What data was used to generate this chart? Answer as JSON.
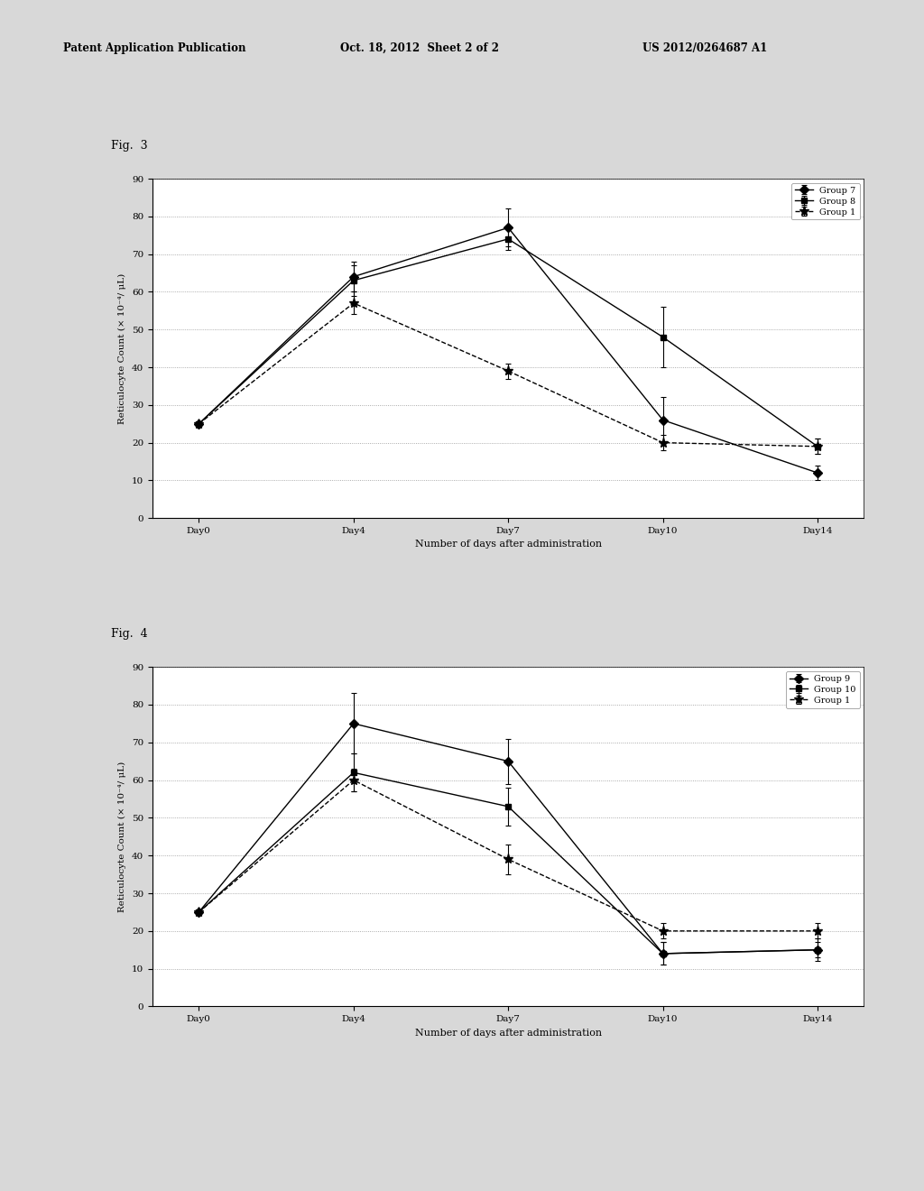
{
  "header_left": "Patent Application Publication",
  "header_mid": "Oct. 18, 2012  Sheet 2 of 2",
  "header_right": "US 2012/0264687 A1",
  "fig3_label": "Fig.  3",
  "fig4_label": "Fig.  4",
  "x_labels": [
    "Day0",
    "Day4",
    "Day7",
    "Day10",
    "Day14"
  ],
  "x_values": [
    0,
    1,
    2,
    3,
    4
  ],
  "xlabel": "Number of days after administration",
  "ylabel": "Reticulocyte Count (× 10⁻⁴/ μL)",
  "ylim": [
    0,
    90
  ],
  "yticks": [
    0,
    10,
    20,
    30,
    40,
    50,
    60,
    70,
    80,
    90
  ],
  "fig3": {
    "group7": {
      "label": "Group 7",
      "values": [
        25,
        64,
        77,
        26,
        12
      ],
      "errors": [
        0,
        4,
        5,
        6,
        2
      ],
      "color": "#000000",
      "linestyle": "-",
      "marker": "D",
      "markersize": 5
    },
    "group8": {
      "label": "Group 8",
      "values": [
        25,
        63,
        74,
        48,
        19
      ],
      "errors": [
        0,
        4,
        3,
        8,
        2
      ],
      "color": "#000000",
      "linestyle": "-",
      "marker": "s",
      "markersize": 5
    },
    "group1": {
      "label": "Group 1",
      "values": [
        25,
        57,
        39,
        20,
        19
      ],
      "errors": [
        0,
        3,
        2,
        2,
        2
      ],
      "color": "#000000",
      "linestyle": "--",
      "marker": "*",
      "markersize": 8
    }
  },
  "fig4": {
    "group9": {
      "label": "Group 9",
      "values": [
        25,
        75,
        65,
        14,
        15
      ],
      "errors": [
        0,
        8,
        6,
        3,
        3
      ],
      "color": "#000000",
      "linestyle": "-",
      "marker": "D",
      "markersize": 5
    },
    "group10": {
      "label": "Group 10",
      "values": [
        25,
        62,
        53,
        14,
        15
      ],
      "errors": [
        0,
        5,
        5,
        3,
        2
      ],
      "color": "#000000",
      "linestyle": "-",
      "marker": "s",
      "markersize": 5
    },
    "group1": {
      "label": "Group 1",
      "values": [
        25,
        60,
        39,
        20,
        20
      ],
      "errors": [
        0,
        3,
        4,
        2,
        2
      ],
      "color": "#000000",
      "linestyle": "--",
      "marker": "*",
      "markersize": 8
    }
  },
  "page_bg": "#d8d8d8",
  "plot_bg": "#ffffff",
  "grid_color": "#888888",
  "legend_fontsize": 7,
  "tick_fontsize": 7.5,
  "label_fontsize": 8,
  "axis_label_fontsize": 7.5
}
